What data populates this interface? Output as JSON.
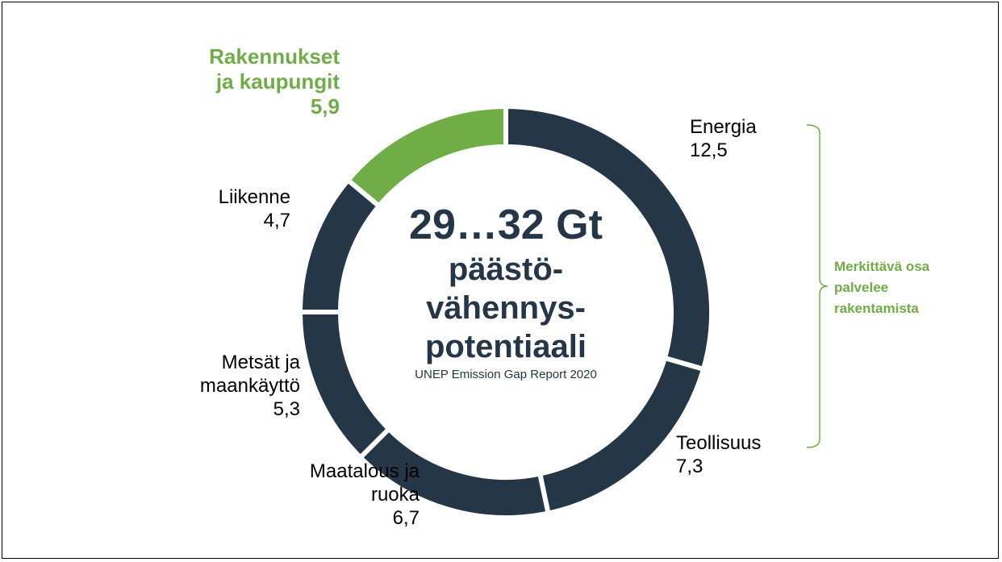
{
  "chart_data": {
    "type": "donut",
    "categories": [
      "Energia",
      "Teollisuus",
      "Maatalous ja ruoka",
      "Metsät ja maankäyttö",
      "Liikenne",
      "Rakennukset ja kaupungit"
    ],
    "values": [
      12.5,
      7.3,
      6.7,
      5.3,
      4.7,
      5.9
    ],
    "value_labels": [
      "12,5",
      "7,3",
      "6,7",
      "5,3",
      "4,7",
      "5,9"
    ],
    "colors": [
      "#253646",
      "#253646",
      "#253646",
      "#253646",
      "#253646",
      "#70ad47"
    ],
    "center_title": "29…32 Gt",
    "center_lines": [
      "päästö-",
      "vähennys-",
      "potentiaali"
    ],
    "source": "UNEP Emission Gap Report 2020",
    "annotation": "Merkittävä osa palvelee rakentamista"
  }
}
